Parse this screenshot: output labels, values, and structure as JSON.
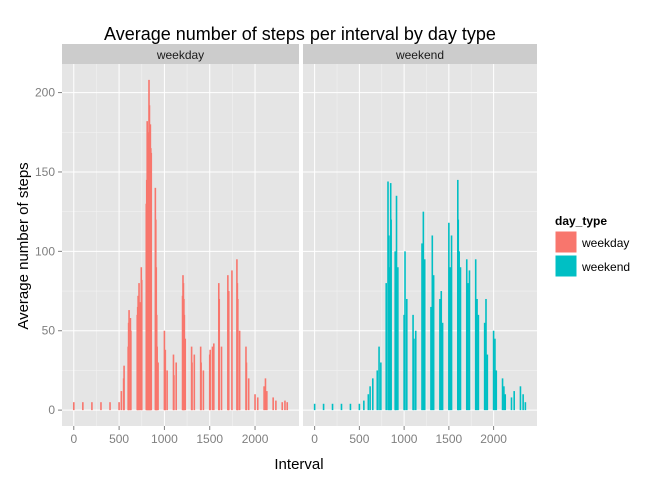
{
  "chart_data": {
    "type": "bar",
    "title": "Average number of steps per interval by day type",
    "xlabel": "Interval",
    "ylabel": "Average number of steps",
    "xlim": [
      -130,
      2485
    ],
    "ylim": [
      -10,
      218
    ],
    "x_ticks": [
      0,
      500,
      1000,
      1500,
      2000
    ],
    "y_ticks": [
      0,
      50,
      100,
      150,
      200
    ],
    "grid": true,
    "legend": {
      "title": "day_type",
      "position": "right",
      "entries": [
        {
          "label": "weekday",
          "color": "#F8766D"
        },
        {
          "label": "weekend",
          "color": "#00BFC4"
        }
      ]
    },
    "series": [
      {
        "name": "weekday",
        "color": "#F8766D",
        "points": [
          {
            "x": 0,
            "y": 5
          },
          {
            "x": 100,
            "y": 5
          },
          {
            "x": 200,
            "y": 5
          },
          {
            "x": 300,
            "y": 5
          },
          {
            "x": 400,
            "y": 5
          },
          {
            "x": 500,
            "y": 5
          },
          {
            "x": 525,
            "y": 12
          },
          {
            "x": 550,
            "y": 20
          },
          {
            "x": 555,
            "y": 28
          },
          {
            "x": 600,
            "y": 40
          },
          {
            "x": 605,
            "y": 55
          },
          {
            "x": 610,
            "y": 63
          },
          {
            "x": 625,
            "y": 58
          },
          {
            "x": 630,
            "y": 50
          },
          {
            "x": 700,
            "y": 60
          },
          {
            "x": 705,
            "y": 65
          },
          {
            "x": 710,
            "y": 72
          },
          {
            "x": 720,
            "y": 80
          },
          {
            "x": 730,
            "y": 68
          },
          {
            "x": 745,
            "y": 90
          },
          {
            "x": 750,
            "y": 82
          },
          {
            "x": 800,
            "y": 130
          },
          {
            "x": 805,
            "y": 145
          },
          {
            "x": 810,
            "y": 182
          },
          {
            "x": 815,
            "y": 160
          },
          {
            "x": 820,
            "y": 175
          },
          {
            "x": 825,
            "y": 165
          },
          {
            "x": 830,
            "y": 208
          },
          {
            "x": 835,
            "y": 192
          },
          {
            "x": 840,
            "y": 170
          },
          {
            "x": 845,
            "y": 180
          },
          {
            "x": 850,
            "y": 165
          },
          {
            "x": 855,
            "y": 162
          },
          {
            "x": 900,
            "y": 140
          },
          {
            "x": 905,
            "y": 120
          },
          {
            "x": 910,
            "y": 90
          },
          {
            "x": 915,
            "y": 60
          },
          {
            "x": 920,
            "y": 40
          },
          {
            "x": 930,
            "y": 30
          },
          {
            "x": 1000,
            "y": 50
          },
          {
            "x": 1005,
            "y": 30
          },
          {
            "x": 1010,
            "y": 38
          },
          {
            "x": 1030,
            "y": 25
          },
          {
            "x": 1100,
            "y": 35
          },
          {
            "x": 1105,
            "y": 22
          },
          {
            "x": 1130,
            "y": 30
          },
          {
            "x": 1200,
            "y": 72
          },
          {
            "x": 1205,
            "y": 85
          },
          {
            "x": 1210,
            "y": 80
          },
          {
            "x": 1215,
            "y": 70
          },
          {
            "x": 1220,
            "y": 60
          },
          {
            "x": 1230,
            "y": 45
          },
          {
            "x": 1300,
            "y": 40
          },
          {
            "x": 1305,
            "y": 30
          },
          {
            "x": 1330,
            "y": 35
          },
          {
            "x": 1400,
            "y": 40
          },
          {
            "x": 1405,
            "y": 30
          },
          {
            "x": 1430,
            "y": 25
          },
          {
            "x": 1500,
            "y": 35
          },
          {
            "x": 1505,
            "y": 38
          },
          {
            "x": 1530,
            "y": 40
          },
          {
            "x": 1545,
            "y": 42
          },
          {
            "x": 1600,
            "y": 80
          },
          {
            "x": 1605,
            "y": 70
          },
          {
            "x": 1630,
            "y": 40
          },
          {
            "x": 1700,
            "y": 85
          },
          {
            "x": 1705,
            "y": 60
          },
          {
            "x": 1710,
            "y": 75
          },
          {
            "x": 1745,
            "y": 88
          },
          {
            "x": 1800,
            "y": 95
          },
          {
            "x": 1805,
            "y": 80
          },
          {
            "x": 1810,
            "y": 70
          },
          {
            "x": 1830,
            "y": 50
          },
          {
            "x": 1900,
            "y": 40
          },
          {
            "x": 1905,
            "y": 30
          },
          {
            "x": 1930,
            "y": 20
          },
          {
            "x": 2000,
            "y": 10
          },
          {
            "x": 2030,
            "y": 8
          },
          {
            "x": 2100,
            "y": 15
          },
          {
            "x": 2115,
            "y": 20
          },
          {
            "x": 2130,
            "y": 12
          },
          {
            "x": 2200,
            "y": 8
          },
          {
            "x": 2230,
            "y": 6
          },
          {
            "x": 2300,
            "y": 5
          },
          {
            "x": 2330,
            "y": 6
          },
          {
            "x": 2355,
            "y": 5
          }
        ]
      },
      {
        "name": "weekend",
        "color": "#00BFC4",
        "points": [
          {
            "x": 0,
            "y": 4
          },
          {
            "x": 100,
            "y": 4
          },
          {
            "x": 200,
            "y": 4
          },
          {
            "x": 300,
            "y": 4
          },
          {
            "x": 400,
            "y": 4
          },
          {
            "x": 500,
            "y": 4
          },
          {
            "x": 550,
            "y": 6
          },
          {
            "x": 600,
            "y": 10
          },
          {
            "x": 620,
            "y": 15
          },
          {
            "x": 650,
            "y": 20
          },
          {
            "x": 700,
            "y": 25
          },
          {
            "x": 720,
            "y": 40
          },
          {
            "x": 740,
            "y": 30
          },
          {
            "x": 800,
            "y": 80
          },
          {
            "x": 820,
            "y": 144
          },
          {
            "x": 830,
            "y": 110
          },
          {
            "x": 840,
            "y": 90
          },
          {
            "x": 850,
            "y": 143
          },
          {
            "x": 855,
            "y": 120
          },
          {
            "x": 900,
            "y": 100
          },
          {
            "x": 905,
            "y": 80
          },
          {
            "x": 915,
            "y": 135
          },
          {
            "x": 930,
            "y": 90
          },
          {
            "x": 1000,
            "y": 60
          },
          {
            "x": 1010,
            "y": 100
          },
          {
            "x": 1030,
            "y": 70
          },
          {
            "x": 1100,
            "y": 60
          },
          {
            "x": 1110,
            "y": 45
          },
          {
            "x": 1130,
            "y": 50
          },
          {
            "x": 1200,
            "y": 105
          },
          {
            "x": 1215,
            "y": 125
          },
          {
            "x": 1230,
            "y": 95
          },
          {
            "x": 1300,
            "y": 65
          },
          {
            "x": 1315,
            "y": 110
          },
          {
            "x": 1330,
            "y": 85
          },
          {
            "x": 1400,
            "y": 70
          },
          {
            "x": 1415,
            "y": 75
          },
          {
            "x": 1430,
            "y": 55
          },
          {
            "x": 1500,
            "y": 118
          },
          {
            "x": 1515,
            "y": 90
          },
          {
            "x": 1530,
            "y": 110
          },
          {
            "x": 1600,
            "y": 145
          },
          {
            "x": 1605,
            "y": 120
          },
          {
            "x": 1615,
            "y": 100
          },
          {
            "x": 1630,
            "y": 90
          },
          {
            "x": 1700,
            "y": 95
          },
          {
            "x": 1715,
            "y": 80
          },
          {
            "x": 1730,
            "y": 88
          },
          {
            "x": 1800,
            "y": 95
          },
          {
            "x": 1815,
            "y": 70
          },
          {
            "x": 1830,
            "y": 60
          },
          {
            "x": 1900,
            "y": 55
          },
          {
            "x": 1915,
            "y": 70
          },
          {
            "x": 1930,
            "y": 35
          },
          {
            "x": 2000,
            "y": 50
          },
          {
            "x": 2015,
            "y": 45
          },
          {
            "x": 2030,
            "y": 25
          },
          {
            "x": 2100,
            "y": 20
          },
          {
            "x": 2115,
            "y": 15
          },
          {
            "x": 2130,
            "y": 10
          },
          {
            "x": 2200,
            "y": 8
          },
          {
            "x": 2230,
            "y": 12
          },
          {
            "x": 2300,
            "y": 15
          },
          {
            "x": 2330,
            "y": 10
          },
          {
            "x": 2355,
            "y": 5
          }
        ]
      }
    ]
  }
}
